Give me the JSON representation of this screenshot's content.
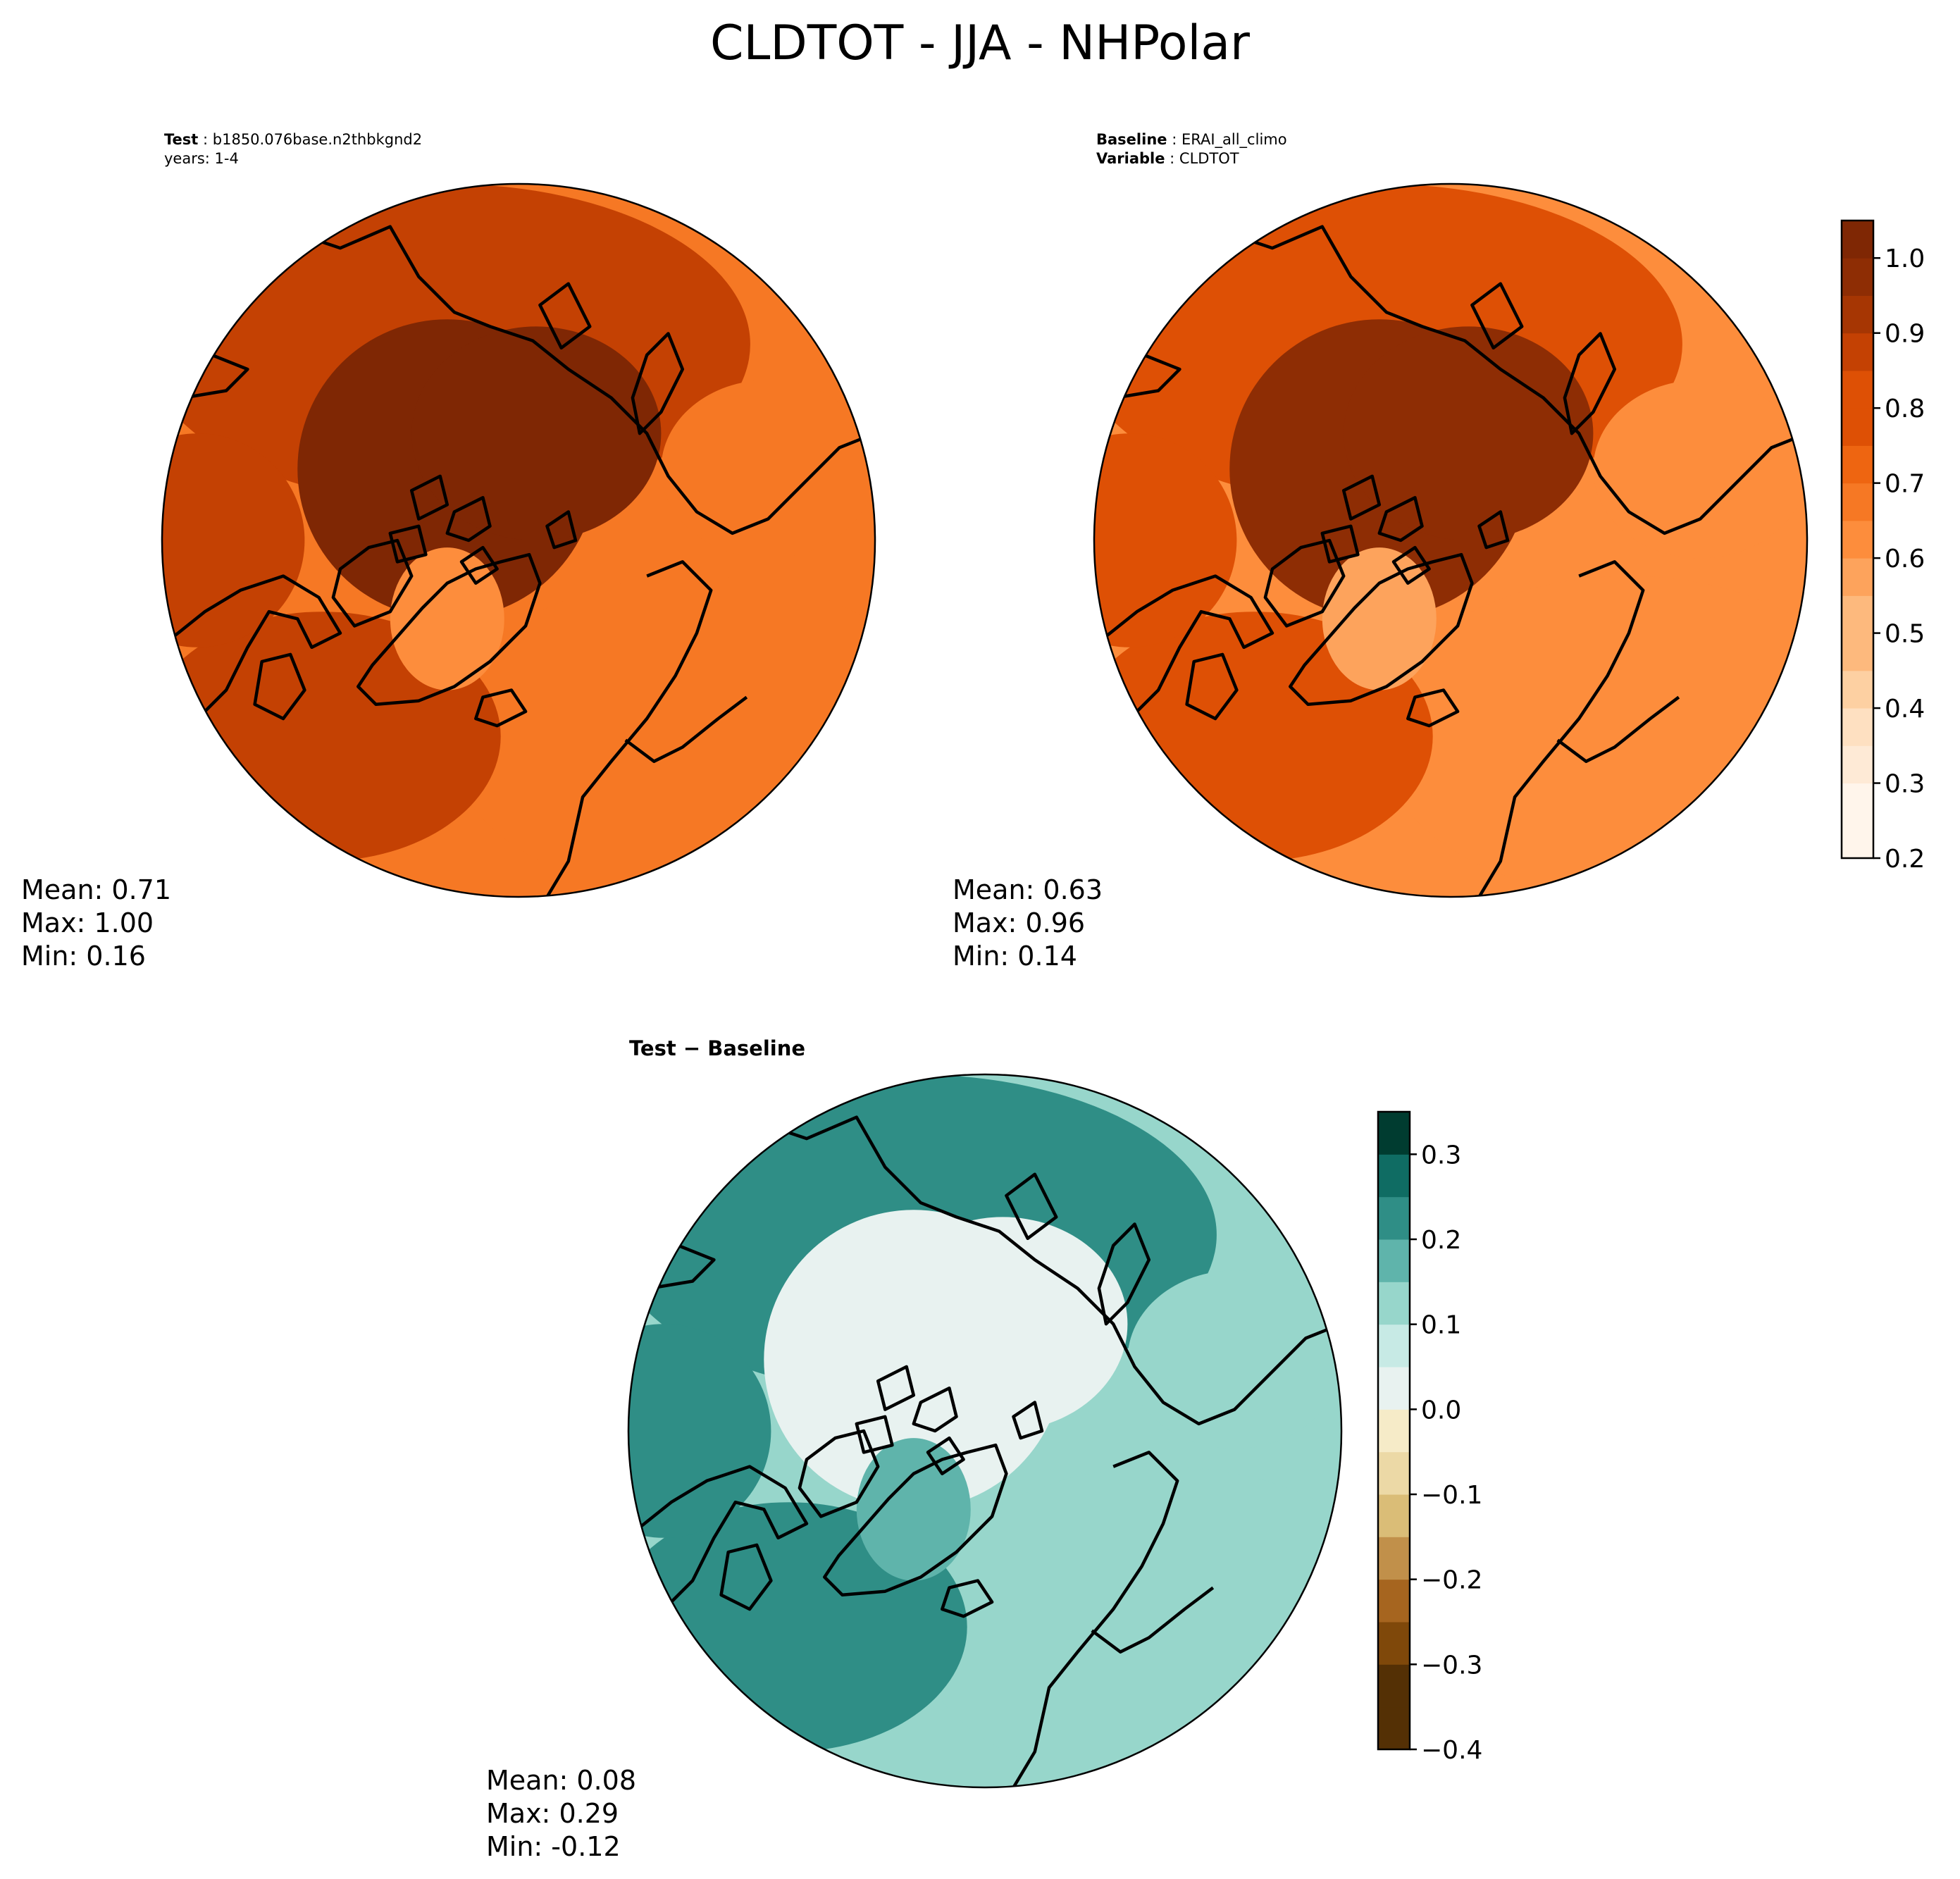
{
  "figure": {
    "title": "CLDTOT - JJA - NHPolar"
  },
  "panels": [
    {
      "id": "test",
      "header_key_1": "Test",
      "header_val_1": "b1850.076base.n2thbkgnd2",
      "header_line_2": "years: 1-4",
      "stats": {
        "mean": "Mean:  0.71",
        "max": "Max:  1.00",
        "min": "Min:  0.16"
      },
      "palette": "oranges",
      "field": {
        "pole": 0.97,
        "land": 0.82,
        "ocean": 0.62,
        "greenland": 0.58,
        "lo": 0.2,
        "hi": 1.0
      }
    },
    {
      "id": "baseline",
      "header_key_1": "Baseline",
      "header_val_1": "ERAI_all_climo",
      "header_key_2": "Variable",
      "header_val_2": "CLDTOT",
      "stats": {
        "mean": "Mean:  0.63",
        "max": "Max:  0.96",
        "min": "Min:  0.14"
      },
      "palette": "oranges",
      "field": {
        "pole": 0.9,
        "land": 0.75,
        "ocean": 0.55,
        "greenland": 0.52,
        "lo": 0.2,
        "hi": 1.0
      }
    },
    {
      "id": "diff",
      "header": "Test − Baseline",
      "stats": {
        "mean": "Mean:  0.08",
        "max": "Max:  0.29",
        "min": "Min: -0.12"
      },
      "palette": "brbg",
      "field": {
        "pole": 0.02,
        "land": 0.2,
        "ocean": 0.1,
        "greenland": 0.16,
        "lo": -0.4,
        "hi": 0.35
      }
    }
  ],
  "colorbars": [
    {
      "id": "cb-top",
      "palette": "oranges",
      "min": 0.2,
      "max": 1.05,
      "step": 0.05,
      "ticks": [
        0.2,
        0.3,
        0.4,
        0.5,
        0.6,
        0.7,
        0.8,
        0.9,
        1.0
      ],
      "tick_labels": [
        "0.2",
        "0.3",
        "0.4",
        "0.5",
        "0.6",
        "0.7",
        "0.8",
        "0.9",
        "1.0"
      ]
    },
    {
      "id": "cb-diff",
      "palette": "brbg",
      "min": -0.4,
      "max": 0.35,
      "step": 0.05,
      "ticks": [
        -0.4,
        -0.3,
        -0.2,
        -0.1,
        0.0,
        0.1,
        0.2,
        0.3
      ],
      "tick_labels": [
        "−0.4",
        "−0.3",
        "−0.2",
        "−0.1",
        "0.0",
        "0.1",
        "0.2",
        "0.3"
      ]
    }
  ],
  "palettes": {
    "oranges": [
      "#fff5eb",
      "#feead6",
      "#fee0c1",
      "#fdd0a2",
      "#fdb97d",
      "#fda35c",
      "#fd8d3c",
      "#f67824",
      "#ee6511",
      "#de5005",
      "#c44103",
      "#a63603",
      "#8e2d04",
      "#7f2704"
    ],
    "brbg": [
      "#543005",
      "#7f480a",
      "#a6651f",
      "#c1904a",
      "#dabd77",
      "#ecd9a6",
      "#f6ebc8",
      "#e8f2f0",
      "#c7eae5",
      "#97d6cb",
      "#5fb4ab",
      "#2f8e86",
      "#0f6c63",
      "#003c30"
    ]
  }
}
